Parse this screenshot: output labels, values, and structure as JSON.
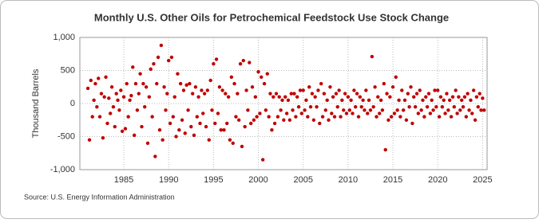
{
  "chart_data": {
    "type": "scatter",
    "title": "Monthly U.S. Other Oils for Petrochemical Feedstock Use Stock Change",
    "y_label": "Thousand Barrels",
    "source": "Source: U.S. Energy Information Administration",
    "color": "#c00000",
    "grid": true,
    "xlim": [
      1980.1,
      2025.5
    ],
    "ylim": [
      -1000,
      1000
    ],
    "xticks": [
      1985,
      1990,
      1995,
      2000,
      2005,
      2010,
      2015,
      2020,
      2025
    ],
    "yticks": [
      {
        "value": 1000,
        "label": "1,000"
      },
      500,
      0,
      -500,
      {
        "value": -1000,
        "label": "-1,000"
      }
    ],
    "x": [
      1981,
      1981.17,
      1981.33,
      1981.5,
      1981.67,
      1981.83,
      1982,
      1982.17,
      1982.33,
      1982.5,
      1982.67,
      1982.83,
      1983,
      1983.17,
      1983.33,
      1983.5,
      1983.67,
      1983.83,
      1984,
      1984.17,
      1984.33,
      1984.5,
      1984.67,
      1984.83,
      1985,
      1985.17,
      1985.33,
      1985.5,
      1985.67,
      1985.83,
      1986,
      1986.17,
      1986.33,
      1986.5,
      1986.67,
      1986.83,
      1987,
      1987.17,
      1987.33,
      1987.5,
      1987.67,
      1987.83,
      1988,
      1988.17,
      1988.33,
      1988.5,
      1988.67,
      1988.83,
      1989,
      1989.17,
      1989.33,
      1989.5,
      1989.67,
      1989.83,
      1990,
      1990.17,
      1990.33,
      1990.5,
      1990.67,
      1990.83,
      1991,
      1991.17,
      1991.33,
      1991.5,
      1991.67,
      1991.83,
      1992,
      1992.17,
      1992.33,
      1992.5,
      1992.67,
      1992.83,
      1993,
      1993.17,
      1993.33,
      1993.5,
      1993.67,
      1993.83,
      1994,
      1994.17,
      1994.33,
      1994.5,
      1994.67,
      1994.83,
      1995,
      1995.17,
      1995.33,
      1995.5,
      1995.67,
      1995.83,
      1996,
      1996.17,
      1996.33,
      1996.5,
      1996.67,
      1996.83,
      1997,
      1997.17,
      1997.33,
      1997.5,
      1997.67,
      1997.83,
      1998,
      1998.17,
      1998.33,
      1998.5,
      1998.67,
      1998.83,
      1999,
      1999.17,
      1999.33,
      1999.5,
      1999.67,
      1999.83,
      2000,
      2000.17,
      2000.33,
      2000.5,
      2000.67,
      2000.83,
      2001,
      2001.17,
      2001.33,
      2001.5,
      2001.67,
      2001.83,
      2002,
      2002.17,
      2002.33,
      2002.5,
      2002.67,
      2002.83,
      2003,
      2003.17,
      2003.33,
      2003.5,
      2003.67,
      2003.83,
      2004,
      2004.17,
      2004.33,
      2004.5,
      2004.67,
      2004.83,
      2005,
      2005.17,
      2005.33,
      2005.5,
      2005.67,
      2005.83,
      2006,
      2006.17,
      2006.33,
      2006.5,
      2006.67,
      2006.83,
      2007,
      2007.17,
      2007.33,
      2007.5,
      2007.67,
      2007.83,
      2008,
      2008.17,
      2008.33,
      2008.5,
      2008.67,
      2008.83,
      2009,
      2009.17,
      2009.33,
      2009.5,
      2009.67,
      2009.83,
      2010,
      2010.17,
      2010.33,
      2010.5,
      2010.67,
      2010.83,
      2011,
      2011.17,
      2011.33,
      2011.5,
      2011.67,
      2011.83,
      2012,
      2012.17,
      2012.33,
      2012.5,
      2012.67,
      2012.83,
      2013,
      2013.17,
      2013.33,
      2013.5,
      2013.67,
      2013.83,
      2014,
      2014.17,
      2014.33,
      2014.5,
      2014.67,
      2014.83,
      2015,
      2015.17,
      2015.33,
      2015.5,
      2015.67,
      2015.83,
      2016,
      2016.17,
      2016.33,
      2016.5,
      2016.67,
      2016.83,
      2017,
      2017.17,
      2017.33,
      2017.5,
      2017.67,
      2017.83,
      2018,
      2018.17,
      2018.33,
      2018.5,
      2018.67,
      2018.83,
      2019,
      2019.17,
      2019.33,
      2019.5,
      2019.67,
      2019.83,
      2020,
      2020.17,
      2020.33,
      2020.5,
      2020.67,
      2020.83,
      2021,
      2021.17,
      2021.33,
      2021.5,
      2021.67,
      2021.83,
      2022,
      2022.17,
      2022.33,
      2022.5,
      2022.67,
      2022.83,
      2023,
      2023.17,
      2023.33,
      2023.5,
      2023.67,
      2023.83,
      2024,
      2024.17,
      2024.33,
      2024.5,
      2024.67,
      2024.83,
      2025,
      2025.17
    ],
    "values": [
      230,
      -550,
      350,
      -200,
      50,
      300,
      -50,
      380,
      -200,
      150,
      -520,
      100,
      400,
      -300,
      80,
      -150,
      250,
      -50,
      -350,
      150,
      50,
      -100,
      200,
      -420,
      100,
      -380,
      300,
      -200,
      50,
      120,
      550,
      -480,
      300,
      -100,
      150,
      450,
      -350,
      300,
      -50,
      250,
      -600,
      100,
      520,
      -200,
      600,
      -800,
      300,
      700,
      -400,
      880,
      -550,
      250,
      -100,
      150,
      650,
      -300,
      700,
      -200,
      100,
      -500,
      450,
      -400,
      300,
      -250,
      200,
      -450,
      280,
      -100,
      300,
      -350,
      150,
      -480,
      250,
      -200,
      100,
      -300,
      200,
      -150,
      150,
      -350,
      200,
      -550,
      350,
      -100,
      600,
      -300,
      670,
      -150,
      250,
      -400,
      200,
      -400,
      150,
      -300,
      100,
      -550,
      400,
      -600,
      300,
      -200,
      150,
      -250,
      600,
      -650,
      650,
      -350,
      200,
      -100,
      620,
      -300,
      250,
      -250,
      100,
      -200,
      480,
      -150,
      400,
      -850,
      300,
      -100,
      450,
      -200,
      150,
      -400,
      100,
      -300,
      150,
      -200,
      100,
      -100,
      50,
      -250,
      100,
      -150,
      50,
      -250,
      150,
      -100,
      150,
      -200,
      100,
      -50,
      200,
      -150,
      200,
      -100,
      50,
      -200,
      250,
      -50,
      150,
      -250,
      100,
      -50,
      200,
      -300,
      300,
      -200,
      150,
      -100,
      50,
      -250,
      250,
      -150,
      100,
      -200,
      150,
      -50,
      200,
      -200,
      50,
      -100,
      150,
      -150,
      100,
      -100,
      50,
      -150,
      200,
      -50,
      150,
      -200,
      100,
      -50,
      50,
      -100,
      200,
      -150,
      50,
      -100,
      710,
      -50,
      250,
      -200,
      100,
      -150,
      50,
      -100,
      300,
      -700,
      150,
      -250,
      100,
      -200,
      250,
      -150,
      400,
      -100,
      50,
      -200,
      200,
      -100,
      50,
      -250,
      150,
      -50,
      250,
      -300,
      100,
      -50,
      150,
      -150,
      200,
      -100,
      50,
      -200,
      100,
      -50,
      150,
      -150,
      50,
      -100,
      200,
      -50,
      200,
      -200,
      100,
      -50,
      50,
      -150,
      150,
      -100,
      50,
      -200,
      100,
      -50,
      200,
      -150,
      100,
      -100,
      50,
      -50,
      100,
      -200,
      150,
      -100,
      50,
      -150,
      200,
      -250,
      100,
      -50,
      150,
      -100,
      80,
      -100
    ]
  }
}
